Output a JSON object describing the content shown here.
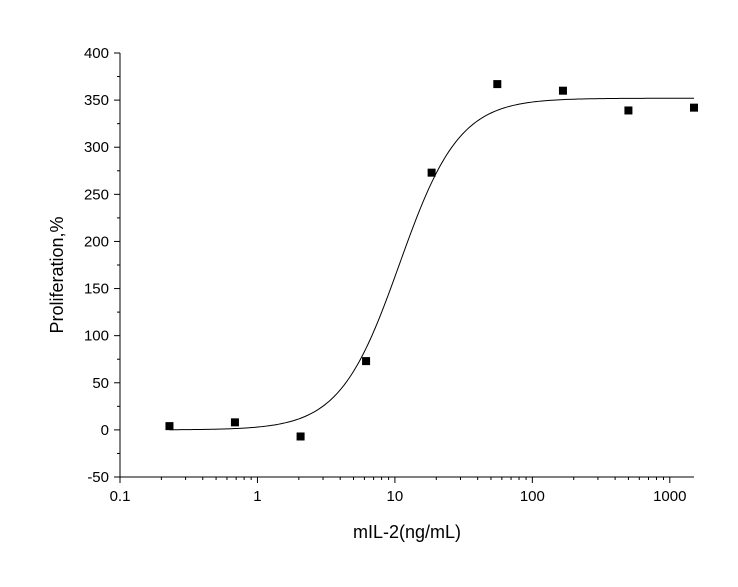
{
  "chart_data": {
    "type": "scatter",
    "title": "",
    "xlabel": "mIL-2(ng/mL)",
    "ylabel": "Proliferation,%",
    "x_scale": "log",
    "xlim": [
      0.1,
      1500
    ],
    "ylim": [
      -50,
      400
    ],
    "x_ticks": [
      0.1,
      1,
      10,
      100,
      1000
    ],
    "x_tick_labels": [
      "0.1",
      "1",
      "10",
      "100",
      "1000"
    ],
    "y_ticks": [
      -50,
      0,
      50,
      100,
      150,
      200,
      250,
      300,
      350,
      400
    ],
    "y_tick_labels": [
      "-50",
      "0",
      "50",
      "100",
      "150",
      "200",
      "250",
      "300",
      "350",
      "400"
    ],
    "grid": false,
    "legend": "none",
    "series": [
      {
        "marker": "square",
        "color": "#000000",
        "x": [
          0.229,
          0.686,
          2.06,
          6.17,
          18.5,
          55.6,
          167,
          500,
          1500
        ],
        "y": [
          4,
          8,
          -7,
          73,
          273,
          367,
          360,
          339,
          342
        ]
      }
    ],
    "fit_curve": {
      "model": "four-parameter logistic",
      "color": "#000000",
      "bottom": 0,
      "top": 352,
      "ec50": 10.8,
      "hill": 2.0
    }
  }
}
